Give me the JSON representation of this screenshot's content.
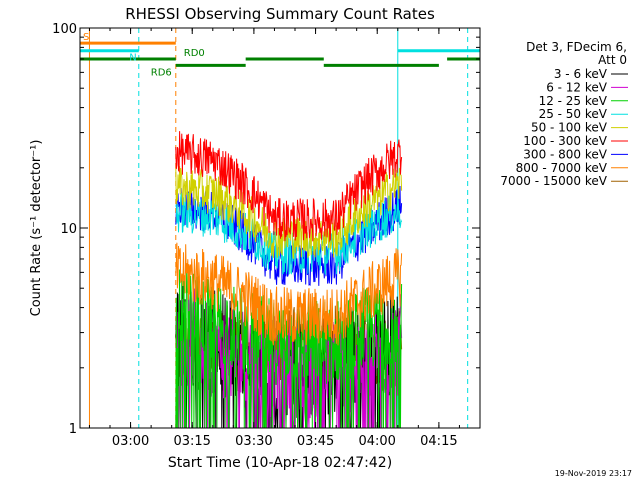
{
  "chart_data": {
    "type": "line",
    "title": "RHESSI Observing Summary Count Rates",
    "xlabel": "Start Time (10-Apr-18 02:47:42)",
    "ylabel": "Count Rate (s⁻¹ detector⁻¹)",
    "yscale": "log",
    "ylim": [
      1,
      100
    ],
    "xlim": [
      "02:47:42",
      "04:25:00"
    ],
    "x_ticks": [
      "03:00",
      "03:15",
      "03:30",
      "03:45",
      "04:00",
      "04:15"
    ],
    "y_ticks": [
      "1",
      "10",
      "100"
    ],
    "grid": false,
    "legend_position": "right",
    "legend_header": [
      "Det 3, FDecim 6,",
      "Att 0"
    ],
    "footer_date": "19-Nov-2019 23:17",
    "data_start": "03:11",
    "data_end": "04:06",
    "series": [
      {
        "name": "3 - 6 keV",
        "color": "#000000",
        "keyframes": [
          [
            "03:11",
            3.0
          ],
          [
            "03:20",
            2.7
          ],
          [
            "03:35",
            2.0
          ],
          [
            "03:50",
            2.0
          ],
          [
            "04:06",
            2.8
          ]
        ]
      },
      {
        "name": "6 - 12 keV",
        "color": "#d000d0",
        "keyframes": [
          [
            "03:11",
            2.9
          ],
          [
            "03:20",
            2.6
          ],
          [
            "03:35",
            2.0
          ],
          [
            "03:50",
            2.0
          ],
          [
            "04:06",
            2.6
          ]
        ]
      },
      {
        "name": "12 - 25 keV",
        "color": "#00d000",
        "keyframes": [
          [
            "03:11",
            3.8
          ],
          [
            "03:20",
            3.5
          ],
          [
            "03:35",
            2.7
          ],
          [
            "03:50",
            2.7
          ],
          [
            "04:06",
            3.6
          ]
        ]
      },
      {
        "name": "25 - 50 keV",
        "color": "#00e0e0",
        "keyframes": [
          [
            "03:11",
            12.0
          ],
          [
            "03:20",
            11.5
          ],
          [
            "03:35",
            7.5
          ],
          [
            "03:50",
            7.5
          ],
          [
            "04:06",
            12.5
          ]
        ]
      },
      {
        "name": "50 - 100 keV",
        "color": "#d0d000",
        "keyframes": [
          [
            "03:11",
            16.0
          ],
          [
            "03:20",
            15.0
          ],
          [
            "03:35",
            9.0
          ],
          [
            "03:50",
            9.0
          ],
          [
            "04:06",
            17.0
          ]
        ]
      },
      {
        "name": "100 - 300 keV",
        "color": "#ff0000",
        "keyframes": [
          [
            "03:11",
            24.0
          ],
          [
            "03:20",
            22.0
          ],
          [
            "03:35",
            11.0
          ],
          [
            "03:50",
            11.0
          ],
          [
            "04:06",
            24.0
          ]
        ]
      },
      {
        "name": "300 - 800 keV",
        "color": "#0000ff",
        "keyframes": [
          [
            "03:11",
            13.0
          ],
          [
            "03:20",
            12.0
          ],
          [
            "03:35",
            6.5
          ],
          [
            "03:50",
            6.5
          ],
          [
            "04:06",
            13.0
          ]
        ]
      },
      {
        "name": "800 - 7000 keV",
        "color": "#ff8000",
        "keyframes": [
          [
            "03:11",
            6.0
          ],
          [
            "03:20",
            5.5
          ],
          [
            "03:35",
            3.6
          ],
          [
            "03:50",
            3.6
          ],
          [
            "04:06",
            5.8
          ]
        ]
      },
      {
        "name": "7000 - 15000 keV",
        "color": "#a06000",
        "keyframes": [
          [
            "03:11",
            2.5
          ],
          [
            "03:20",
            2.5
          ],
          [
            "03:35",
            2.5
          ],
          [
            "03:50",
            2.5
          ],
          [
            "04:06",
            2.5
          ]
        ]
      }
    ],
    "state_bars": [
      {
        "label": "S",
        "color": "#ff8000",
        "value": 84,
        "segments": [
          [
            "02:47:42",
            "03:11"
          ]
        ]
      },
      {
        "label": "N",
        "color": "#00e0e0",
        "value": 77,
        "segments": [
          [
            "02:47:42",
            "03:02"
          ],
          [
            "04:05",
            "04:25"
          ]
        ]
      },
      {
        "label": "RD0",
        "color": "#008000",
        "value": 70,
        "segments": [
          [
            "02:47:42",
            "03:11"
          ],
          [
            "03:28",
            "03:47"
          ],
          [
            "04:17",
            "04:25"
          ]
        ]
      },
      {
        "label": "RD6",
        "color": "#008000",
        "value": 65,
        "segments": [
          [
            "03:11",
            "03:28"
          ],
          [
            "03:47",
            "04:15"
          ]
        ]
      }
    ],
    "vertical_markers": [
      {
        "time": "02:47:42",
        "color": "#00e0e0",
        "style": "solid"
      },
      {
        "time": "02:50",
        "color": "#ff8000",
        "style": "solid"
      },
      {
        "time": "03:02",
        "color": "#00e0e0",
        "style": "dashed"
      },
      {
        "time": "03:11",
        "color": "#ff8000",
        "style": "dashed"
      },
      {
        "time": "04:05",
        "color": "#00e0e0",
        "style": "solid"
      },
      {
        "time": "04:22",
        "color": "#00e0e0",
        "style": "dashed"
      }
    ]
  }
}
